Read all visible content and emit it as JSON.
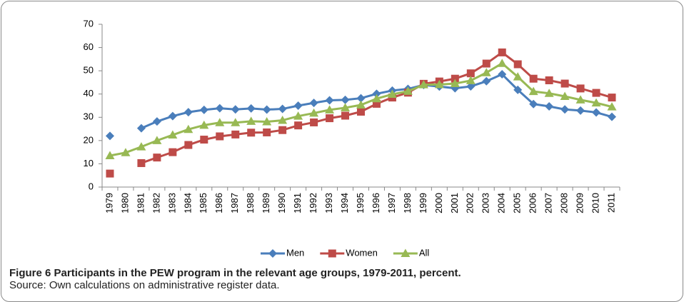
{
  "chart_data": {
    "type": "line",
    "title": "Figure 6 Participants in the PEW program in the relevant age groups, 1979-2011, percent.",
    "source": "Source: Own calculations on administrative register data.",
    "categories": [
      "1979",
      "1980",
      "1981",
      "1982",
      "1983",
      "1984",
      "1985",
      "1986",
      "1987",
      "1988",
      "1989",
      "1990",
      "1991",
      "1992",
      "1993",
      "1994",
      "1995",
      "1996",
      "1997",
      "1998",
      "1999",
      "2000",
      "2001",
      "2002",
      "2003",
      "2004",
      "2005",
      "2006",
      "2007",
      "2008",
      "2009",
      "2010",
      "2011"
    ],
    "series": [
      {
        "name": "Men",
        "color": "#4a7ebb",
        "marker": "diamond",
        "values": [
          22,
          null,
          25.3,
          28.2,
          30.5,
          32.2,
          33.2,
          33.9,
          33.4,
          33.8,
          33.3,
          33.6,
          35,
          36.2,
          37.3,
          37.5,
          38.2,
          40.1,
          41.5,
          42.2,
          43.9,
          43.2,
          42.5,
          43.3,
          45.5,
          48.5,
          41.8,
          35.7,
          34.7,
          33.4,
          32.9,
          32.1,
          30.2
        ]
      },
      {
        "name": "Women",
        "color": "#be4b48",
        "marker": "square",
        "values": [
          5.8,
          null,
          10.3,
          12.7,
          15,
          18.1,
          20.4,
          21.8,
          22.6,
          23.4,
          23.5,
          24.5,
          26.5,
          27.8,
          29.6,
          30.7,
          32.4,
          35.8,
          38.5,
          40.6,
          44.4,
          45.4,
          46.6,
          48.9,
          53.1,
          57.9,
          52.8,
          46.6,
          45.9,
          44.5,
          42.4,
          40.5,
          38.5
        ]
      },
      {
        "name": "All",
        "color": "#98b954",
        "marker": "triangle",
        "values": [
          13.5,
          14.8,
          17.3,
          20,
          22.4,
          24.8,
          26.6,
          27.7,
          27.7,
          28.3,
          28.1,
          28.7,
          30.5,
          31.8,
          33.2,
          34.1,
          35.3,
          38,
          39.9,
          41.2,
          44,
          44.1,
          44.5,
          45.8,
          49.2,
          53.2,
          47.4,
          41.1,
          40.3,
          39,
          37.5,
          36.2,
          34.5
        ]
      }
    ],
    "ylim": [
      0,
      70
    ],
    "yticks": [
      0,
      10,
      20,
      30,
      40,
      50,
      60,
      70
    ],
    "grid": false,
    "legend": "bottom"
  }
}
